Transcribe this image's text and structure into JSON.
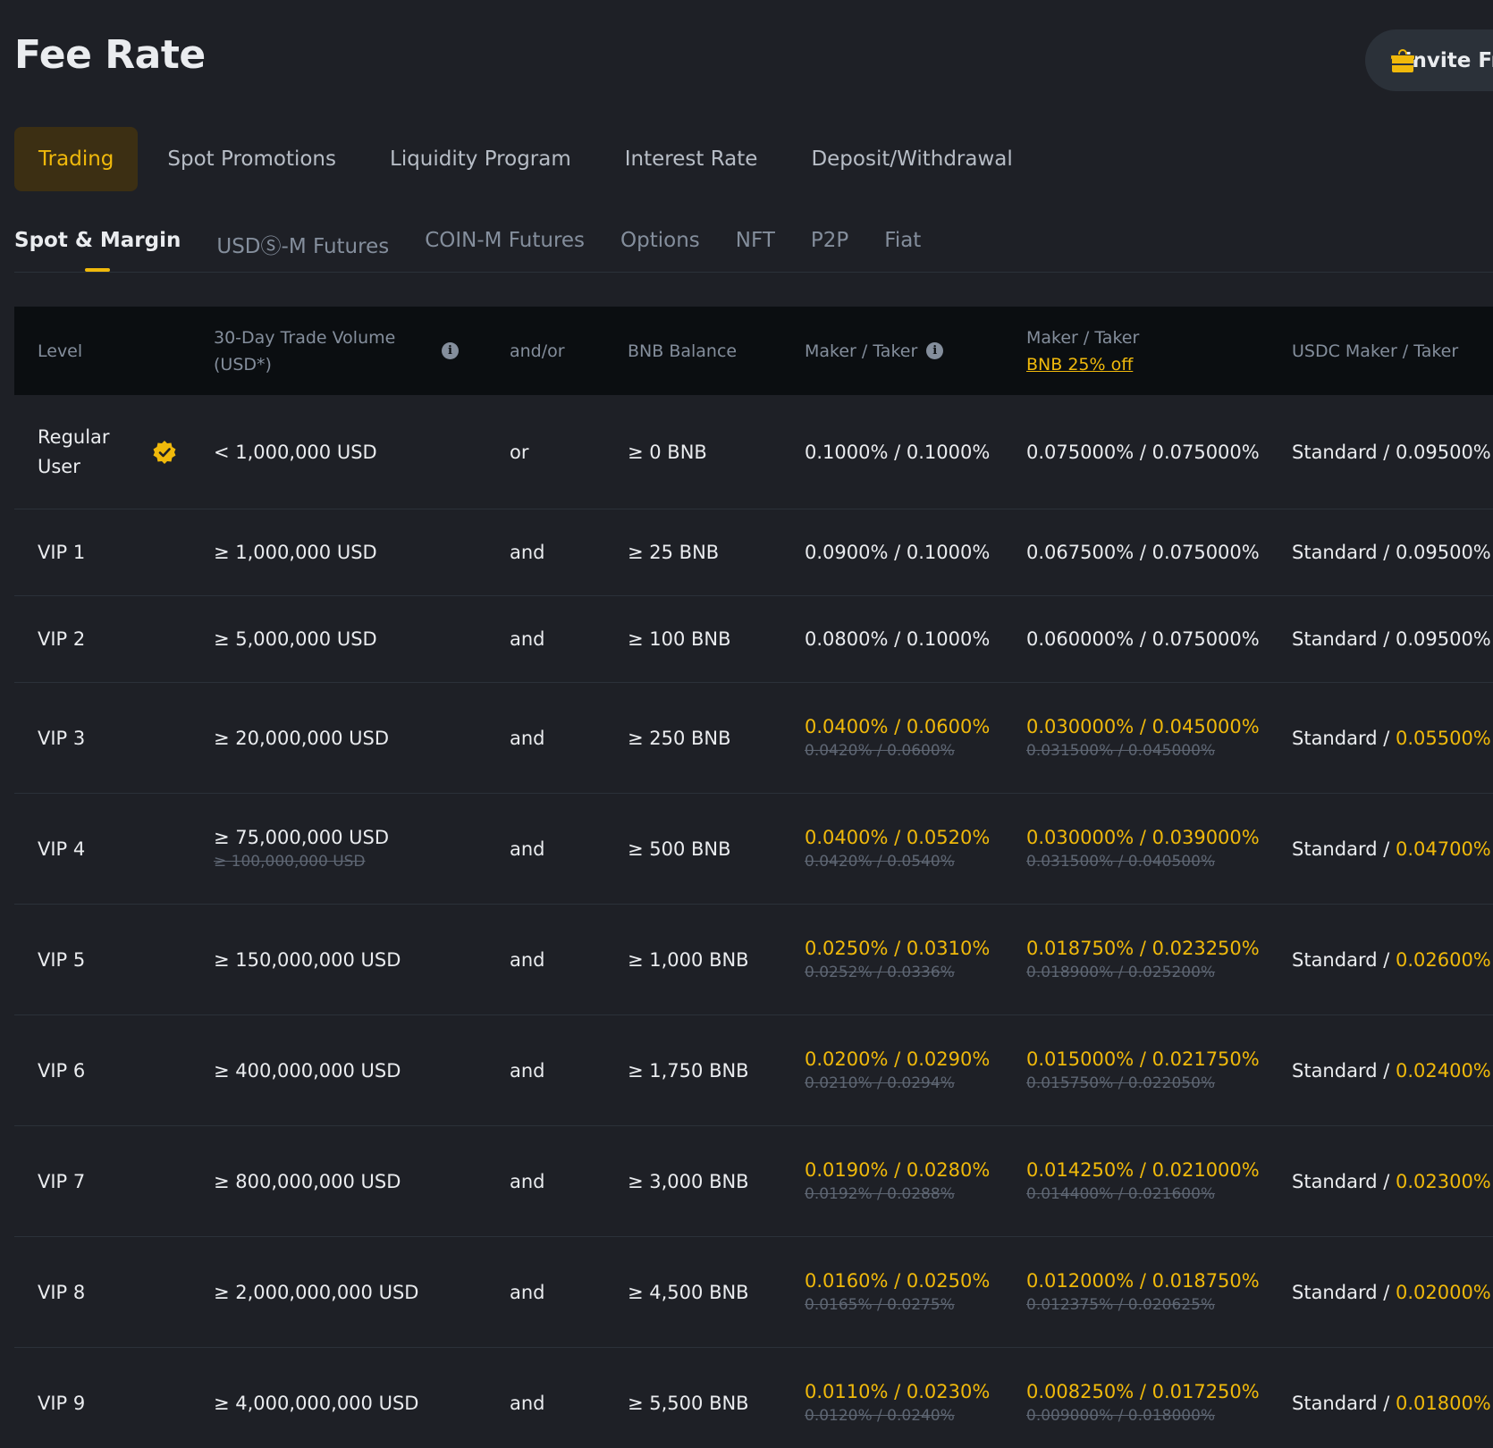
{
  "page": {
    "title": "Fee Rate"
  },
  "invite": {
    "label": "Invite Friends"
  },
  "tabs": [
    {
      "label": "Trading",
      "active": true
    },
    {
      "label": "Spot Promotions"
    },
    {
      "label": "Liquidity Program"
    },
    {
      "label": "Interest Rate"
    },
    {
      "label": "Deposit/Withdrawal"
    }
  ],
  "subtabs": [
    {
      "label": "Spot & Margin",
      "active": true
    },
    {
      "label": "USDⓈ-M Futures"
    },
    {
      "label": "COIN-M Futures"
    },
    {
      "label": "Options"
    },
    {
      "label": "NFT"
    },
    {
      "label": "P2P"
    },
    {
      "label": "Fiat"
    }
  ],
  "table": {
    "headers": {
      "level": "Level",
      "volume_line1": "30-Day Trade Volume",
      "volume_line2": "(USD*)",
      "andor": "and/or",
      "bnb": "BNB Balance",
      "maker_taker": "Maker / Taker",
      "maker_taker_bnb": "Maker / Taker",
      "bnb_discount": "BNB 25% off",
      "usdc": "USDC Maker / Taker"
    },
    "rows": [
      {
        "level": "Regular User",
        "volume": "< 1,000,000 USD",
        "volume_old": "",
        "andor": "or",
        "bnb": "≥ 0 BNB",
        "mt": "0.1000% / 0.1000%",
        "mt_old": "",
        "mtbnb": "0.075000% / 0.075000%",
        "mtbnb_old": "",
        "usdc_std": "Standard / ",
        "usdc_val": "0.09500%",
        "hl": false
      },
      {
        "level": "VIP 1",
        "volume": "≥ 1,000,000 USD",
        "volume_old": "",
        "andor": "and",
        "bnb": "≥ 25 BNB",
        "mt": "0.0900% / 0.1000%",
        "mt_old": "",
        "mtbnb": "0.067500% / 0.075000%",
        "mtbnb_old": "",
        "usdc_std": "Standard / ",
        "usdc_val": "0.09500%",
        "hl": false
      },
      {
        "level": "VIP 2",
        "volume": "≥ 5,000,000 USD",
        "volume_old": "",
        "andor": "and",
        "bnb": "≥ 100 BNB",
        "mt": "0.0800% / 0.1000%",
        "mt_old": "",
        "mtbnb": "0.060000% / 0.075000%",
        "mtbnb_old": "",
        "usdc_std": "Standard / ",
        "usdc_val": "0.09500%",
        "hl": false
      },
      {
        "level": "VIP 3",
        "volume": "≥ 20,000,000 USD",
        "volume_old": "",
        "andor": "and",
        "bnb": "≥ 250 BNB",
        "mt": "0.0400% / 0.0600%",
        "mt_old": "0.0420% / 0.0600%",
        "mtbnb": "0.030000% / 0.045000%",
        "mtbnb_old": "0.031500% / 0.045000%",
        "usdc_std": "Standard / ",
        "usdc_val": "0.05500%",
        "hl": true
      },
      {
        "level": "VIP 4",
        "volume": "≥ 75,000,000 USD",
        "volume_old": "≥ 100,000,000 USD",
        "andor": "and",
        "bnb": "≥ 500 BNB",
        "mt": "0.0400% / 0.0520%",
        "mt_old": "0.0420% / 0.0540%",
        "mtbnb": "0.030000% / 0.039000%",
        "mtbnb_old": "0.031500% / 0.040500%",
        "usdc_std": "Standard / ",
        "usdc_val": "0.04700%",
        "hl": true
      },
      {
        "level": "VIP 5",
        "volume": "≥ 150,000,000 USD",
        "volume_old": "",
        "andor": "and",
        "bnb": "≥ 1,000 BNB",
        "mt": "0.0250% / 0.0310%",
        "mt_old": "0.0252% / 0.0336%",
        "mtbnb": "0.018750% / 0.023250%",
        "mtbnb_old": "0.018900% / 0.025200%",
        "usdc_std": "Standard / ",
        "usdc_val": "0.02600%",
        "hl": true
      },
      {
        "level": "VIP 6",
        "volume": "≥ 400,000,000 USD",
        "volume_old": "",
        "andor": "and",
        "bnb": "≥ 1,750 BNB",
        "mt": "0.0200% / 0.0290%",
        "mt_old": "0.0210% / 0.0294%",
        "mtbnb": "0.015000% / 0.021750%",
        "mtbnb_old": "0.015750% / 0.022050%",
        "usdc_std": "Standard / ",
        "usdc_val": "0.02400%",
        "hl": true
      },
      {
        "level": "VIP 7",
        "volume": "≥ 800,000,000 USD",
        "volume_old": "",
        "andor": "and",
        "bnb": "≥ 3,000 BNB",
        "mt": "0.0190% / 0.0280%",
        "mt_old": "0.0192% / 0.0288%",
        "mtbnb": "0.014250% / 0.021000%",
        "mtbnb_old": "0.014400% / 0.021600%",
        "usdc_std": "Standard / ",
        "usdc_val": "0.02300%",
        "hl": true
      },
      {
        "level": "VIP 8",
        "volume": "≥ 2,000,000,000 USD",
        "volume_old": "",
        "andor": "and",
        "bnb": "≥ 4,500 BNB",
        "mt": "0.0160% / 0.0250%",
        "mt_old": "0.0165% / 0.0275%",
        "mtbnb": "0.012000% / 0.018750%",
        "mtbnb_old": "0.012375% / 0.020625%",
        "usdc_std": "Standard / ",
        "usdc_val": "0.02000%",
        "hl": true
      },
      {
        "level": "VIP 9",
        "volume": "≥ 4,000,000,000 USD",
        "volume_old": "",
        "andor": "and",
        "bnb": "≥ 5,500 BNB",
        "mt": "0.0110% / 0.0230%",
        "mt_old": "0.0120% / 0.0240%",
        "mtbnb": "0.008250% / 0.017250%",
        "mtbnb_old": "0.009000% / 0.018000%",
        "usdc_std": "Standard / ",
        "usdc_val": "0.01800%",
        "hl": true
      }
    ]
  }
}
